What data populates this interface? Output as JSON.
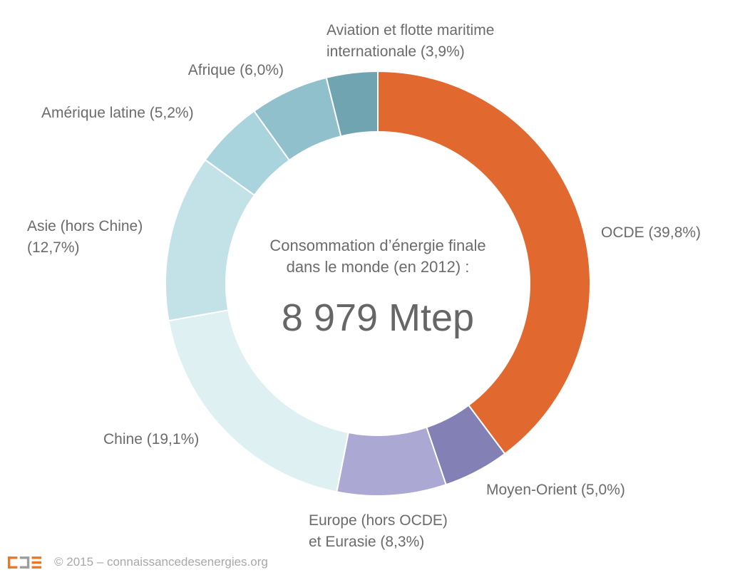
{
  "chart_data": {
    "type": "pie",
    "subtype": "donut",
    "direction": "clockwise",
    "start_angle_deg": 0,
    "center_title": "Consommation d’énergie finale\ndans le monde (en 2012) :",
    "center_value": "8 979 Mtep",
    "total_value": 8979,
    "unit": "Mtep",
    "year": "2012",
    "segment_gap_color": "#ffffff",
    "segments": [
      {
        "name": "OCDE",
        "value": 39.8,
        "label": "OCDE (39,8%)",
        "color": "#E1682E"
      },
      {
        "name": "Moyen-Orient",
        "value": 5.0,
        "label": "Moyen-Orient (5,0%)",
        "color": "#8280B4"
      },
      {
        "name": "Europe (hors OCDE) et Eurasie",
        "value": 8.3,
        "label": "Europe (hors OCDE)\net Eurasie (8,3%)",
        "color": "#ABA8D4"
      },
      {
        "name": "Chine",
        "value": 19.1,
        "label": "Chine (19,1%)",
        "color": "#DFF0F3"
      },
      {
        "name": "Asie (hors Chine)",
        "value": 12.7,
        "label": "Asie (hors Chine)\n(12,7%)",
        "color": "#C2E2E8"
      },
      {
        "name": "Amérique latine",
        "value": 5.2,
        "label": "Amérique latine (5,2%)",
        "color": "#A9D4DD"
      },
      {
        "name": "Afrique",
        "value": 6.0,
        "label": "Afrique (6,0%)",
        "color": "#8FC0CC"
      },
      {
        "name": "Aviation et flotte maritime internationale",
        "value": 3.9,
        "label": "Aviation et flotte maritime\ninternationale (3,9%)",
        "color": "#6FA4B0"
      }
    ]
  },
  "footer": {
    "copyright": "© 2015 – connaissancedesenergies.org",
    "logo_orange": "#EE7623",
    "logo_gray": "#9D9D9C"
  }
}
